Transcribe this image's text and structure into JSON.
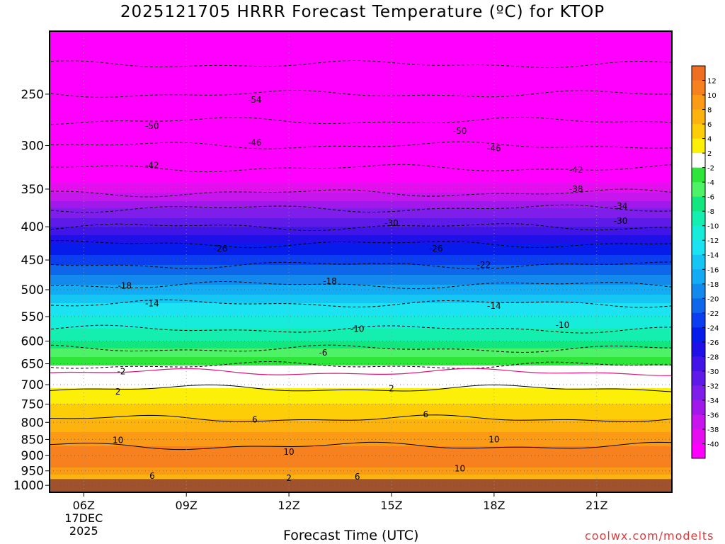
{
  "title": "2025121705 HRRR Forecast Temperature (ºC) for KTOP",
  "xlabel": "Forecast Time (UTC)",
  "credit": "coolwx.com/modelts",
  "chart_data": {
    "type": "heatmap",
    "title": "2025121705 HRRR Forecast Temperature (ºC) for KTOP",
    "xlabel": "Forecast Time (UTC)",
    "ylabel": "",
    "x_ticks": [
      "06Z",
      "09Z",
      "12Z",
      "15Z",
      "18Z",
      "21Z"
    ],
    "x_tick_hours": [
      6,
      9,
      12,
      15,
      18,
      21
    ],
    "x_date_label": [
      "17DEC",
      "2025"
    ],
    "xlim_hours": [
      5.0,
      23.2
    ],
    "y_ticks": [
      250,
      300,
      350,
      400,
      450,
      500,
      550,
      600,
      650,
      700,
      750,
      800,
      850,
      900,
      950,
      1000
    ],
    "y_scale": "log",
    "ylim": [
      1025,
      200
    ],
    "grid": true,
    "legend_placement": "right",
    "colorbar": {
      "bands": [
        {
          "lo": 12,
          "hi": 14,
          "color": "#ee6f22"
        },
        {
          "lo": 10,
          "hi": 12,
          "color": "#f6811e"
        },
        {
          "lo": 8,
          "hi": 10,
          "color": "#fb9a14"
        },
        {
          "lo": 6,
          "hi": 8,
          "color": "#fdb30e"
        },
        {
          "lo": 4,
          "hi": 6,
          "color": "#fdcd08"
        },
        {
          "lo": 2,
          "hi": 4,
          "color": "#fdf008"
        },
        {
          "lo": -2,
          "hi": 2,
          "color": "#ffffff"
        },
        {
          "lo": -4,
          "hi": -2,
          "color": "#2ee63a"
        },
        {
          "lo": -6,
          "hi": -4,
          "color": "#4ef266"
        },
        {
          "lo": -8,
          "hi": -6,
          "color": "#12e67e"
        },
        {
          "lo": -10,
          "hi": -8,
          "color": "#14efb0"
        },
        {
          "lo": -12,
          "hi": -10,
          "color": "#16ecd9"
        },
        {
          "lo": -14,
          "hi": -12,
          "color": "#1be3f2"
        },
        {
          "lo": -16,
          "hi": -14,
          "color": "#15c6f5"
        },
        {
          "lo": -18,
          "hi": -16,
          "color": "#13abf3"
        },
        {
          "lo": -20,
          "hi": -18,
          "color": "#1389ee"
        },
        {
          "lo": -22,
          "hi": -20,
          "color": "#0e66eb"
        },
        {
          "lo": -24,
          "hi": -22,
          "color": "#0a3ef0"
        },
        {
          "lo": -26,
          "hi": -24,
          "color": "#071ceb"
        },
        {
          "lo": -28,
          "hi": -26,
          "color": "#2010e8"
        },
        {
          "lo": -30,
          "hi": -28,
          "color": "#4314e8"
        },
        {
          "lo": -32,
          "hi": -30,
          "color": "#5e1ae9"
        },
        {
          "lo": -34,
          "hi": -32,
          "color": "#7f1eea"
        },
        {
          "lo": -36,
          "hi": -34,
          "color": "#a118ea"
        },
        {
          "lo": -38,
          "hi": -36,
          "color": "#c716ed"
        },
        {
          "lo": -40,
          "hi": -38,
          "color": "#e50eef"
        },
        {
          "lo": -60,
          "hi": -40,
          "color": "#ff00ff"
        }
      ],
      "labels": [
        12,
        10,
        8,
        6,
        4,
        2,
        -2,
        -4,
        -6,
        -8,
        -10,
        -12,
        -14,
        -16,
        -18,
        -20,
        -22,
        -24,
        -26,
        -28,
        -30,
        -32,
        -34,
        -36,
        -38,
        -40
      ]
    },
    "temperature_profile": [
      {
        "p": 225,
        "t": -58
      },
      {
        "p": 250,
        "t": -54
      },
      {
        "p": 275,
        "t": -50
      },
      {
        "p": 300,
        "t": -46
      },
      {
        "p": 325,
        "t": -42
      },
      {
        "p": 350,
        "t": -39
      },
      {
        "p": 375,
        "t": -34
      },
      {
        "p": 400,
        "t": -30
      },
      {
        "p": 425,
        "t": -26
      },
      {
        "p": 450,
        "t": -23
      },
      {
        "p": 475,
        "t": -20
      },
      {
        "p": 500,
        "t": -17
      },
      {
        "p": 525,
        "t": -14
      },
      {
        "p": 550,
        "t": -12
      },
      {
        "p": 575,
        "t": -10
      },
      {
        "p": 600,
        "t": -8
      },
      {
        "p": 625,
        "t": -5
      },
      {
        "p": 650,
        "t": -2.5
      },
      {
        "p": 670,
        "t": 0
      },
      {
        "p": 690,
        "t": 1
      },
      {
        "p": 710,
        "t": 2
      },
      {
        "p": 750,
        "t": 4
      },
      {
        "p": 790,
        "t": 6
      },
      {
        "p": 830,
        "t": 8
      },
      {
        "p": 870,
        "t": 10
      },
      {
        "p": 920,
        "t": 11
      },
      {
        "p": 960,
        "t": 9
      },
      {
        "p": 980,
        "t": 5
      }
    ],
    "ground_pressure": 978,
    "contour_labels": [
      {
        "text": "-54",
        "hour": 11.0,
        "p": 255
      },
      {
        "text": "-50",
        "hour": 8.0,
        "p": 280
      },
      {
        "text": "-50",
        "hour": 17.0,
        "p": 285
      },
      {
        "text": "-46",
        "hour": 11.0,
        "p": 297
      },
      {
        "text": "-46",
        "hour": 18.0,
        "p": 303
      },
      {
        "text": "-42",
        "hour": 8.0,
        "p": 322
      },
      {
        "text": "-42",
        "hour": 20.4,
        "p": 327
      },
      {
        "text": "-38",
        "hour": 20.4,
        "p": 350
      },
      {
        "text": "-34",
        "hour": 21.7,
        "p": 372
      },
      {
        "text": "-30",
        "hour": 15.0,
        "p": 395
      },
      {
        "text": "-30",
        "hour": 21.7,
        "p": 392
      },
      {
        "text": "-26",
        "hour": 10.0,
        "p": 432
      },
      {
        "text": "-26",
        "hour": 16.3,
        "p": 432
      },
      {
        "text": "-22",
        "hour": 17.7,
        "p": 458
      },
      {
        "text": "-18",
        "hour": 7.2,
        "p": 493
      },
      {
        "text": "-18",
        "hour": 13.2,
        "p": 485
      },
      {
        "text": "-14",
        "hour": 8.0,
        "p": 525
      },
      {
        "text": "-14",
        "hour": 18.0,
        "p": 530
      },
      {
        "text": "-10",
        "hour": 14.0,
        "p": 575
      },
      {
        "text": "-10",
        "hour": 20.0,
        "p": 567
      },
      {
        "text": "-6",
        "hour": 13.0,
        "p": 625
      },
      {
        "text": "-2",
        "hour": 7.1,
        "p": 668
      },
      {
        "text": "2",
        "hour": 7.0,
        "p": 718
      },
      {
        "text": "2",
        "hour": 15.0,
        "p": 710
      },
      {
        "text": "6",
        "hour": 11.0,
        "p": 792
      },
      {
        "text": "6",
        "hour": 16.0,
        "p": 778
      },
      {
        "text": "10",
        "hour": 7.0,
        "p": 852
      },
      {
        "text": "10",
        "hour": 12.0,
        "p": 888
      },
      {
        "text": "10",
        "hour": 18.0,
        "p": 850
      },
      {
        "text": "10",
        "hour": 17.0,
        "p": 942
      },
      {
        "text": "6",
        "hour": 8.0,
        "p": 968
      },
      {
        "text": "2",
        "hour": 12.0,
        "p": 975
      },
      {
        "text": "6",
        "hour": 14.0,
        "p": 970
      }
    ]
  }
}
